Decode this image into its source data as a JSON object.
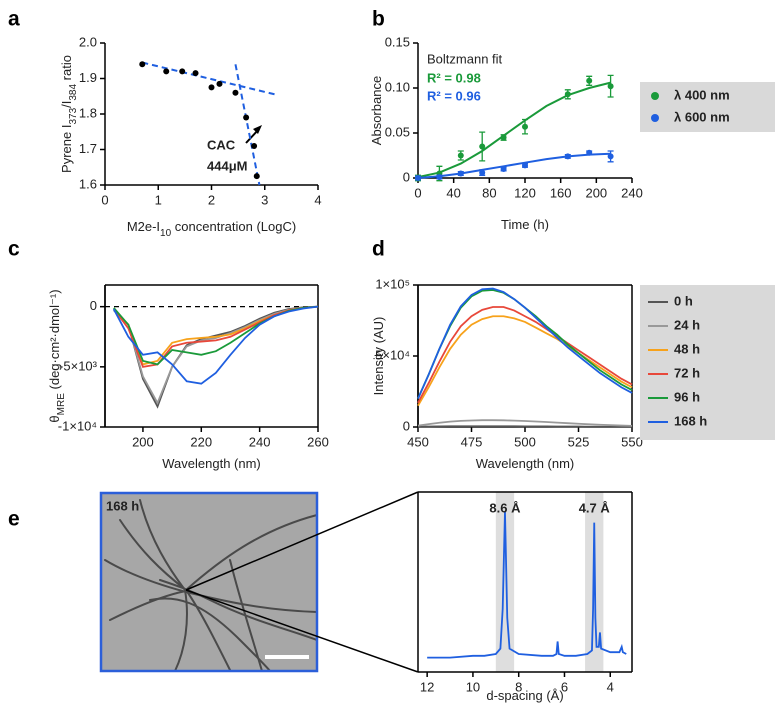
{
  "chart_data": [
    {
      "type": "scatter",
      "panel": "a",
      "xlabel": [
        "M2e-I",
        "10",
        " concentration (LogC)"
      ],
      "ylabel": [
        "Pyrene I",
        "373",
        "/I",
        "384",
        " ratio"
      ],
      "xlim": [
        0,
        4
      ],
      "xticks": [
        0,
        1,
        2,
        3,
        4
      ],
      "ylim": [
        1.6,
        2.0
      ],
      "yticks": [
        1.6,
        1.7,
        1.8,
        1.9,
        {
          "value": 2.0,
          "label": "2.0"
        }
      ],
      "frame": "axes",
      "fit_style": "dashed",
      "fit_color": "#1f5fe0",
      "series": [
        {
          "color": "#000000",
          "x": [
            0.7,
            1.15,
            1.45,
            1.7,
            2.0,
            2.15,
            2.45,
            2.65,
            2.8,
            2.85
          ],
          "values": [
            1.94,
            1.92,
            1.92,
            1.915,
            1.875,
            1.885,
            1.86,
            1.79,
            1.71,
            1.625
          ]
        }
      ],
      "fits": [
        {
          "x": [
            0.7,
            3.2
          ],
          "values": [
            1.945,
            1.855
          ]
        },
        {
          "x": [
            2.45,
            2.9
          ],
          "values": [
            1.94,
            1.6
          ]
        }
      ],
      "annotations": [
        "CAC",
        "444μM"
      ]
    },
    {
      "type": "errorbar",
      "panel": "b",
      "xlabel": [
        "Time (h)"
      ],
      "ylabel": [
        "Absorbance"
      ],
      "xlim": [
        0,
        240
      ],
      "xticks": [
        0,
        40,
        80,
        120,
        160,
        200,
        240
      ],
      "ylim": [
        0,
        0.15
      ],
      "yticks": [
        0,
        0.05,
        {
          "value": 0.1,
          "label": "0.10"
        },
        0.15
      ],
      "frame": "axes",
      "fit_style": "solid",
      "series": [
        {
          "name": "λ 400 nm",
          "color": "#1a9a3a",
          "x": [
            0,
            24,
            48,
            72,
            96,
            120,
            168,
            192,
            216
          ],
          "values": [
            0,
            0.005,
            0.025,
            0.035,
            0.045,
            0.057,
            0.093,
            0.108,
            0.102
          ],
          "errors": [
            0.003,
            0.008,
            0.005,
            0.016,
            0.003,
            0.008,
            0.005,
            0.005,
            0.012
          ]
        },
        {
          "name": "λ 600 nm",
          "color": "#1f5fe0",
          "x": [
            0,
            24,
            48,
            72,
            96,
            120,
            168,
            192,
            216
          ],
          "values": [
            0,
            0.001,
            0.005,
            0.006,
            0.01,
            0.014,
            0.024,
            0.028,
            0.024
          ],
          "errors": [
            0.002,
            0.002,
            0.002,
            0.003,
            0.002,
            0.002,
            0.002,
            0.002,
            0.006
          ]
        }
      ],
      "fits": [
        {
          "color": "#1a9a3a",
          "x": [
            0,
            24,
            48,
            72,
            96,
            120,
            144,
            168,
            192,
            216
          ],
          "values": [
            0.001,
            0.006,
            0.016,
            0.03,
            0.047,
            0.064,
            0.08,
            0.092,
            0.1,
            0.106
          ]
        },
        {
          "color": "#1f5fe0",
          "x": [
            0,
            24,
            48,
            72,
            96,
            120,
            144,
            168,
            192,
            216
          ],
          "values": [
            0,
            0.002,
            0.005,
            0.009,
            0.013,
            0.017,
            0.021,
            0.024,
            0.026,
            0.027
          ]
        }
      ],
      "annotations": [
        "Boltzmann fit",
        "R² = 0.98",
        "R² = 0.96"
      ]
    },
    {
      "type": "line",
      "panel": "c",
      "xlabel": [
        "Wavelength (nm)"
      ],
      "ylabel": [
        "θ",
        "MRE",
        " (deg·cm²·dmol⁻¹)"
      ],
      "xlim": [
        187,
        260
      ],
      "xticks": [
        200,
        220,
        240,
        260
      ],
      "ylim": [
        -10000,
        1800
      ],
      "yticks": [
        {
          "value": -10000,
          "label": "-1×10⁴"
        },
        {
          "value": -5000,
          "label": "-5×10³"
        },
        0
      ],
      "frame": "box",
      "zero_line": true,
      "x": [
        190,
        195,
        200,
        205,
        210,
        215,
        220,
        225,
        230,
        235,
        240,
        245,
        250,
        255,
        260
      ],
      "series": [
        {
          "color": "#555555",
          "values": [
            -300,
            -1500,
            -6000,
            -8300,
            -5000,
            -3200,
            -2700,
            -2400,
            -2100,
            -1600,
            -1000,
            -500,
            -200,
            -50,
            0
          ]
        },
        {
          "color": "#999999",
          "values": [
            -300,
            -1500,
            -5800,
            -8000,
            -5000,
            -3300,
            -2800,
            -2600,
            -2200,
            -1700,
            -1100,
            -600,
            -250,
            -80,
            0
          ]
        },
        {
          "color": "#f7a21b",
          "values": [
            -200,
            -1500,
            -4800,
            -4500,
            -3000,
            -2700,
            -2600,
            -2500,
            -2300,
            -1800,
            -1200,
            -700,
            -300,
            -100,
            0
          ]
        },
        {
          "color": "#e8483a",
          "values": [
            -200,
            -1800,
            -5000,
            -4800,
            -3300,
            -3000,
            -2900,
            -2800,
            -2500,
            -1900,
            -1300,
            -700,
            -300,
            -100,
            0
          ]
        },
        {
          "color": "#1a9a3a",
          "values": [
            -100,
            -1500,
            -4500,
            -4800,
            -3600,
            -3800,
            -4000,
            -3700,
            -3000,
            -2200,
            -1400,
            -800,
            -350,
            -100,
            0
          ]
        },
        {
          "color": "#1f5fe0",
          "values": [
            -200,
            -2500,
            -4000,
            -3800,
            -4800,
            -6200,
            -6400,
            -5500,
            -4000,
            -2600,
            -1500,
            -800,
            -400,
            -150,
            0
          ]
        }
      ]
    },
    {
      "type": "line",
      "panel": "d",
      "xlabel": [
        "Wavelength (nm)"
      ],
      "ylabel": [
        "Intensity (AU)"
      ],
      "xlim": [
        450,
        550
      ],
      "xticks": [
        450,
        475,
        500,
        525,
        550
      ],
      "ylim": [
        0,
        100000
      ],
      "yticks": [
        0,
        {
          "value": 50000,
          "label": "5×10⁴"
        },
        {
          "value": 100000,
          "label": "1×10⁵"
        }
      ],
      "frame": "box",
      "x": [
        450,
        455,
        460,
        465,
        470,
        475,
        480,
        485,
        490,
        495,
        500,
        505,
        510,
        515,
        520,
        525,
        530,
        535,
        540,
        545,
        550
      ],
      "series": [
        {
          "name": "0 h",
          "color": "#555555",
          "values": [
            200,
            300,
            400,
            500,
            500,
            500,
            500,
            500,
            500,
            500,
            400,
            400,
            400,
            300,
            300,
            300,
            200,
            200,
            200,
            200,
            200
          ]
        },
        {
          "name": "24 h",
          "color": "#999999",
          "values": [
            1000,
            2000,
            3000,
            3800,
            4300,
            4600,
            4800,
            4800,
            4700,
            4500,
            4200,
            3900,
            3500,
            3100,
            2700,
            2300,
            1900,
            1600,
            1300,
            1000,
            800
          ]
        },
        {
          "name": "48 h",
          "color": "#f7a21b",
          "values": [
            15000,
            28000,
            42000,
            55000,
            65000,
            72000,
            76000,
            78000,
            78000,
            76500,
            74000,
            70000,
            66000,
            62000,
            57000,
            52000,
            47000,
            42000,
            37000,
            32000,
            28000
          ]
        },
        {
          "name": "72 h",
          "color": "#e8483a",
          "values": [
            17000,
            31000,
            46000,
            60000,
            71000,
            78000,
            82500,
            84500,
            84500,
            82000,
            78000,
            74000,
            69000,
            64000,
            59000,
            54000,
            49000,
            44000,
            39000,
            34000,
            30000
          ]
        },
        {
          "name": "96 h",
          "color": "#1a9a3a",
          "values": [
            20000,
            37000,
            55000,
            71000,
            84000,
            92000,
            96000,
            96500,
            94500,
            90000,
            84000,
            78000,
            71000,
            65000,
            58000,
            52000,
            46000,
            40000,
            35000,
            30000,
            26000
          ]
        },
        {
          "name": "168 h",
          "color": "#1f5fe0",
          "values": [
            20000,
            37000,
            55000,
            72000,
            85000,
            93000,
            97000,
            97500,
            95000,
            90000,
            84000,
            77000,
            70000,
            63000,
            56000,
            50000,
            44000,
            38000,
            33000,
            28000,
            24000
          ]
        }
      ]
    },
    {
      "type": "line",
      "panel": "e",
      "image_label": "168 h",
      "xlabel": [
        "d-spacing (Å)"
      ],
      "xlim": [
        12.4,
        3.05
      ],
      "xticks": [
        12,
        10,
        8,
        6,
        4
      ],
      "ylim": [
        0,
        1
      ],
      "frame": "box",
      "highlights": [
        [
          9.0,
          8.2
        ],
        [
          5.1,
          4.3
        ]
      ],
      "series": [
        {
          "color": "#1f5fe0",
          "x": [
            12,
            11,
            10,
            9.5,
            9,
            8.8,
            8.7,
            8.6,
            8.5,
            8.4,
            8,
            7,
            6.5,
            6.35,
            6.3,
            6.25,
            6,
            5.5,
            5,
            4.8,
            4.75,
            4.7,
            4.65,
            4.6,
            4.5,
            4.45,
            4.4,
            4,
            3.6,
            3.5,
            3.45,
            3.3
          ],
          "values": [
            0.08,
            0.08,
            0.09,
            0.09,
            0.1,
            0.13,
            0.35,
            0.89,
            0.3,
            0.13,
            0.1,
            0.09,
            0.09,
            0.1,
            0.17,
            0.1,
            0.09,
            0.09,
            0.1,
            0.12,
            0.35,
            0.83,
            0.3,
            0.14,
            0.14,
            0.22,
            0.13,
            0.11,
            0.11,
            0.14,
            0.11,
            0.1
          ]
        }
      ],
      "annotations": [
        "8.6 Å",
        "4.7 Å"
      ]
    }
  ]
}
